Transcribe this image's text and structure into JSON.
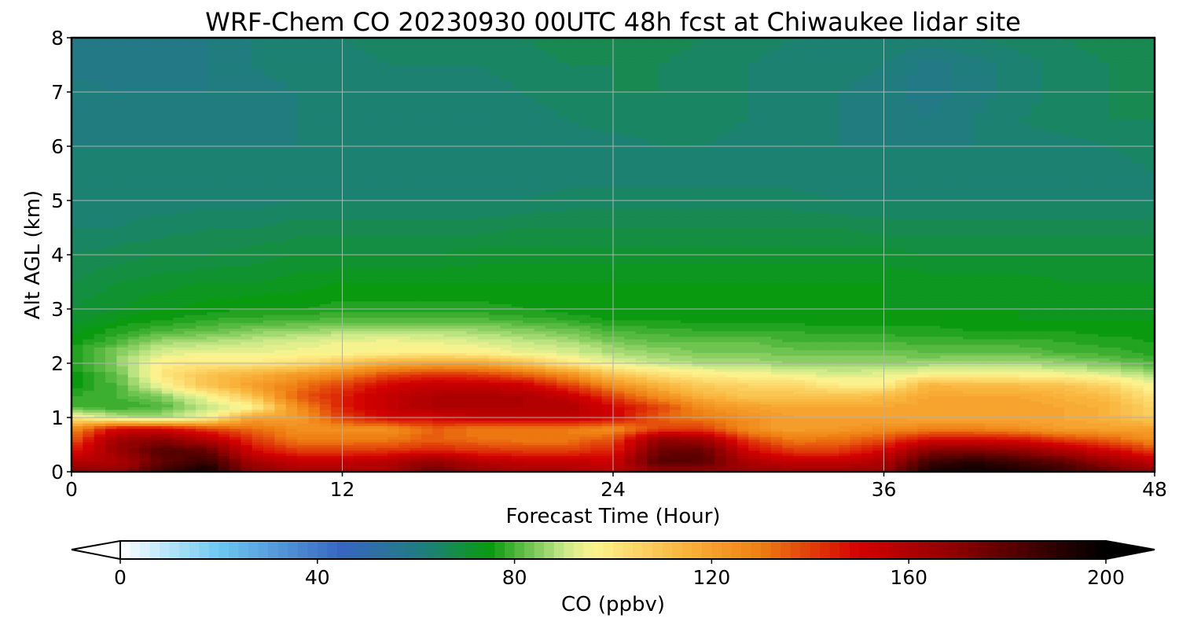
{
  "chart_data": {
    "type": "heatmap",
    "title": "WRF-Chem CO  20230930 00UTC 48h fcst at Chiwaukee lidar site",
    "xlabel": "Forecast Time (Hour)",
    "ylabel": "Alt AGL (km)",
    "xlim": [
      0,
      48
    ],
    "ylim": [
      0,
      8
    ],
    "xticks": [
      0,
      12,
      24,
      36,
      48
    ],
    "yticks": [
      0,
      1,
      2,
      3,
      4,
      5,
      6,
      7,
      8
    ],
    "grid": true,
    "colorbar": {
      "label": "CO  (ppbv)",
      "range": [
        0,
        200
      ],
      "ticks": [
        0,
        40,
        80,
        120,
        160,
        200
      ],
      "extend": "both",
      "levels": 100,
      "stops": [
        {
          "value": 0,
          "color": "#ffffff"
        },
        {
          "value": 20,
          "color": "#6dc8f0"
        },
        {
          "value": 45,
          "color": "#3865c0"
        },
        {
          "value": 62,
          "color": "#1f7f7a"
        },
        {
          "value": 75,
          "color": "#0a9a10"
        },
        {
          "value": 90,
          "color": "#c8e889"
        },
        {
          "value": 96,
          "color": "#fdf590"
        },
        {
          "value": 115,
          "color": "#f9b23a"
        },
        {
          "value": 130,
          "color": "#ee7d12"
        },
        {
          "value": 150,
          "color": "#d40000"
        },
        {
          "value": 170,
          "color": "#8b0000"
        },
        {
          "value": 190,
          "color": "#2a0000"
        },
        {
          "value": 200,
          "color": "#000000"
        }
      ]
    },
    "x": [
      0,
      2,
      4,
      6,
      8,
      10,
      12,
      14,
      16,
      18,
      20,
      22,
      24,
      26,
      28,
      30,
      32,
      34,
      36,
      38,
      40,
      42,
      44,
      46,
      48
    ],
    "y": [
      0.05,
      0.2,
      0.4,
      0.6,
      0.8,
      1.0,
      1.2,
      1.4,
      1.6,
      1.8,
      2.0,
      2.2,
      2.4,
      2.6,
      2.8,
      3.0,
      3.5,
      4.0,
      4.5,
      5.0,
      5.5,
      6.0,
      6.5,
      7.0,
      7.5,
      8.0
    ],
    "z": [
      [
        170,
        165,
        185,
        195,
        168,
        160,
        160,
        160,
        175,
        165,
        160,
        160,
        155,
        170,
        170,
        165,
        162,
        162,
        165,
        192,
        196,
        192,
        185,
        175,
        165
      ],
      [
        158,
        160,
        178,
        188,
        162,
        155,
        155,
        158,
        168,
        158,
        155,
        155,
        152,
        182,
        180,
        160,
        155,
        155,
        160,
        185,
        190,
        185,
        178,
        165,
        155
      ],
      [
        145,
        165,
        182,
        178,
        150,
        140,
        140,
        142,
        145,
        142,
        140,
        140,
        145,
        175,
        178,
        150,
        140,
        140,
        150,
        170,
        172,
        168,
        160,
        150,
        140
      ],
      [
        135,
        165,
        170,
        160,
        142,
        130,
        130,
        130,
        135,
        132,
        130,
        130,
        138,
        168,
        165,
        140,
        130,
        132,
        138,
        150,
        150,
        148,
        140,
        135,
        125
      ],
      [
        125,
        150,
        150,
        140,
        132,
        125,
        125,
        125,
        135,
        130,
        130,
        130,
        125,
        140,
        140,
        125,
        120,
        122,
        125,
        128,
        128,
        125,
        120,
        120,
        120
      ],
      [
        100,
        90,
        88,
        95,
        120,
        120,
        140,
        150,
        150,
        155,
        155,
        155,
        150,
        135,
        130,
        125,
        120,
        120,
        120,
        118,
        118,
        118,
        118,
        115,
        108
      ],
      [
        80,
        78,
        80,
        90,
        95,
        125,
        145,
        155,
        160,
        160,
        160,
        160,
        150,
        140,
        125,
        120,
        118,
        118,
        118,
        120,
        120,
        120,
        118,
        115,
        105
      ],
      [
        78,
        80,
        85,
        95,
        110,
        135,
        145,
        155,
        160,
        162,
        160,
        155,
        140,
        125,
        115,
        110,
        110,
        110,
        112,
        118,
        118,
        118,
        115,
        112,
        100
      ],
      [
        75,
        80,
        95,
        110,
        120,
        130,
        140,
        150,
        155,
        155,
        152,
        140,
        125,
        115,
        108,
        105,
        105,
        98,
        98,
        115,
        112,
        112,
        110,
        105,
        94
      ],
      [
        75,
        82,
        100,
        110,
        115,
        122,
        128,
        138,
        142,
        140,
        135,
        125,
        110,
        102,
        98,
        96,
        94,
        92,
        93,
        96,
        96,
        96,
        95,
        92,
        88
      ],
      [
        75,
        85,
        98,
        100,
        100,
        102,
        110,
        118,
        120,
        120,
        112,
        100,
        94,
        90,
        88,
        88,
        86,
        86,
        86,
        87,
        88,
        88,
        86,
        84,
        80
      ],
      [
        77,
        85,
        92,
        94,
        94,
        95,
        96,
        97,
        98,
        97,
        94,
        92,
        88,
        86,
        84,
        84,
        83,
        83,
        83,
        82,
        82,
        82,
        80,
        79,
        77
      ],
      [
        75,
        80,
        87,
        88,
        90,
        92,
        94,
        95,
        94,
        92,
        90,
        88,
        84,
        82,
        82,
        82,
        80,
        80,
        80,
        79,
        79,
        79,
        78,
        77,
        76
      ],
      [
        73,
        77,
        80,
        82,
        85,
        86,
        88,
        88,
        88,
        87,
        85,
        83,
        80,
        79,
        78,
        78,
        78,
        77,
        77,
        77,
        76,
        76,
        76,
        75,
        75
      ],
      [
        71,
        74,
        76,
        78,
        79,
        80,
        81,
        81,
        81,
        81,
        79,
        78,
        76,
        76,
        75,
        75,
        75,
        75,
        75,
        75,
        74,
        74,
        74,
        74,
        74
      ],
      [
        70,
        72,
        74,
        75,
        76,
        76,
        77,
        77,
        77,
        77,
        76,
        75,
        74,
        74,
        74,
        74,
        74,
        74,
        74,
        74,
        74,
        74,
        73,
        73,
        73
      ],
      [
        68,
        70,
        71,
        72,
        72,
        73,
        74,
        74,
        74,
        74,
        74,
        74,
        74,
        74,
        74,
        74,
        74,
        74,
        74,
        73,
        73,
        73,
        72,
        72,
        72
      ],
      [
        66,
        67,
        68,
        68,
        69,
        70,
        70,
        70,
        70,
        71,
        71,
        71,
        71,
        71,
        71,
        71,
        71,
        71,
        71,
        70,
        70,
        70,
        70,
        70,
        70
      ],
      [
        64,
        64,
        65,
        66,
        66,
        67,
        67,
        67,
        67,
        67,
        68,
        68,
        68,
        68,
        68,
        68,
        68,
        68,
        67,
        67,
        67,
        67,
        67,
        67,
        67
      ],
      [
        63,
        63,
        63,
        63,
        63,
        64,
        64,
        64,
        64,
        64,
        64,
        65,
        65,
        65,
        65,
        65,
        65,
        64,
        64,
        64,
        64,
        64,
        64,
        64,
        64
      ],
      [
        62,
        62,
        62,
        62,
        62,
        62,
        62,
        62,
        62,
        62,
        62,
        63,
        63,
        63,
        63,
        63,
        63,
        62,
        62,
        62,
        62,
        62,
        62,
        63,
        64
      ],
      [
        62,
        62,
        62,
        62,
        62,
        62,
        62,
        62,
        62,
        62,
        62,
        63,
        63,
        64,
        64,
        63,
        63,
        62,
        62,
        62,
        62,
        63,
        63,
        64,
        65
      ],
      [
        62,
        61,
        61,
        61,
        61,
        62,
        62,
        62,
        62,
        62,
        63,
        64,
        65,
        65,
        65,
        64,
        63,
        62,
        61,
        60,
        62,
        64,
        65,
        66,
        66
      ],
      [
        61,
        60,
        60,
        60,
        61,
        62,
        62,
        63,
        63,
        63,
        64,
        65,
        66,
        66,
        65,
        64,
        63,
        62,
        61,
        59,
        61,
        63,
        65,
        66,
        67
      ],
      [
        59,
        59,
        59,
        60,
        62,
        63,
        63,
        64,
        64,
        64,
        65,
        66,
        66,
        66,
        65,
        64,
        63,
        63,
        62,
        59,
        61,
        63,
        65,
        66,
        67
      ],
      [
        59,
        59,
        59,
        60,
        62,
        63,
        64,
        65,
        65,
        65,
        66,
        67,
        67,
        67,
        66,
        65,
        64,
        64,
        64,
        63,
        64,
        65,
        66,
        67,
        67
      ]
    ]
  }
}
